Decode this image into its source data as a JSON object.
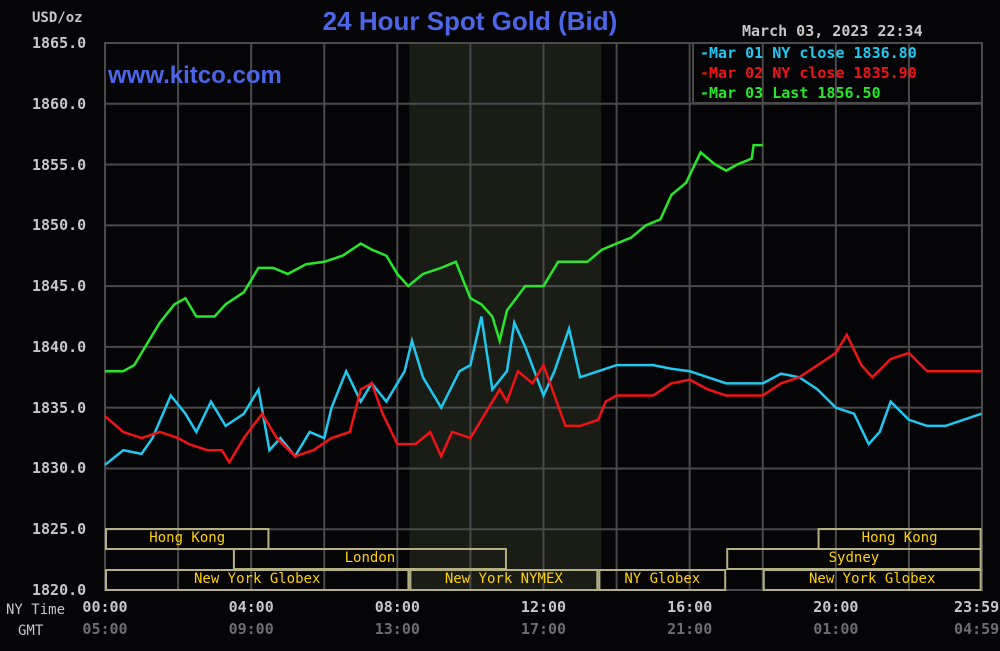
{
  "chart_data": {
    "type": "line",
    "title": "24 Hour Spot Gold (Bid)",
    "ylabel": "USD/oz",
    "watermark": "www.kitco.com",
    "timestamp": "March 03, 2023 22:34",
    "ylim": [
      1820,
      1865
    ],
    "y_ticks": [
      "1865.0",
      "1860.0",
      "1855.0",
      "1850.0",
      "1845.0",
      "1840.0",
      "1835.0",
      "1830.0",
      "1825.0",
      "1820.0"
    ],
    "x_row_labels": [
      "NY Time",
      "GMT"
    ],
    "x_ticks_ny": [
      "00:00",
      "04:00",
      "08:00",
      "12:00",
      "16:00",
      "20:00",
      "23:59"
    ],
    "x_ticks_gmt": [
      "05:00",
      "09:00",
      "13:00",
      "17:00",
      "21:00",
      "01:00",
      "04:59"
    ],
    "grid": true,
    "legend_placement": "top-right",
    "shaded_region_hours": [
      8.33,
      13.58
    ],
    "series": [
      {
        "name": "Mar 01 NY close 1836.80",
        "color": "#1ec8f0",
        "points": [
          [
            0,
            1830.3
          ],
          [
            0.5,
            1831.5
          ],
          [
            1,
            1831.2
          ],
          [
            1.3,
            1832.5
          ],
          [
            1.8,
            1836
          ],
          [
            2.2,
            1834.5
          ],
          [
            2.5,
            1833
          ],
          [
            2.9,
            1835.5
          ],
          [
            3.3,
            1833.5
          ],
          [
            3.8,
            1834.5
          ],
          [
            4.2,
            1836.5
          ],
          [
            4.5,
            1831.5
          ],
          [
            4.8,
            1832.5
          ],
          [
            5.2,
            1831
          ],
          [
            5.6,
            1833
          ],
          [
            6,
            1832.5
          ],
          [
            6.2,
            1835
          ],
          [
            6.6,
            1838
          ],
          [
            7,
            1835.5
          ],
          [
            7.3,
            1837
          ],
          [
            7.7,
            1835.5
          ],
          [
            8.2,
            1838
          ],
          [
            8.4,
            1840.5
          ],
          [
            8.7,
            1837.5
          ],
          [
            9.2,
            1835
          ],
          [
            9.7,
            1838
          ],
          [
            10,
            1838.5
          ],
          [
            10.3,
            1842.5
          ],
          [
            10.6,
            1836.5
          ],
          [
            11,
            1838
          ],
          [
            11.2,
            1842
          ],
          [
            11.5,
            1840
          ],
          [
            12,
            1836
          ],
          [
            12.3,
            1838
          ],
          [
            12.7,
            1841.5
          ],
          [
            13,
            1837.5
          ],
          [
            13.5,
            1838
          ],
          [
            14,
            1838.5
          ],
          [
            15,
            1838.5
          ],
          [
            15.5,
            1838.2
          ],
          [
            16,
            1838
          ],
          [
            16.5,
            1837.5
          ],
          [
            17,
            1837
          ],
          [
            18,
            1837
          ],
          [
            18.5,
            1837.8
          ],
          [
            19,
            1837.5
          ],
          [
            19.5,
            1836.5
          ],
          [
            20,
            1835
          ],
          [
            20.5,
            1834.5
          ],
          [
            20.9,
            1832
          ],
          [
            21.2,
            1833
          ],
          [
            21.5,
            1835.5
          ],
          [
            22,
            1834
          ],
          [
            22.5,
            1833.5
          ],
          [
            23,
            1833.5
          ],
          [
            23.99,
            1834.5
          ]
        ]
      },
      {
        "name": "Mar 02 NY close 1835.90",
        "color": "#f01414",
        "points": [
          [
            0,
            1834.3
          ],
          [
            0.5,
            1833
          ],
          [
            1,
            1832.5
          ],
          [
            1.5,
            1833
          ],
          [
            2,
            1832.5
          ],
          [
            2.3,
            1832
          ],
          [
            2.8,
            1831.5
          ],
          [
            3.2,
            1831.5
          ],
          [
            3.4,
            1830.5
          ],
          [
            3.8,
            1832.5
          ],
          [
            4.3,
            1834.5
          ],
          [
            4.7,
            1832.5
          ],
          [
            5.2,
            1831
          ],
          [
            5.7,
            1831.5
          ],
          [
            6.2,
            1832.5
          ],
          [
            6.7,
            1833
          ],
          [
            7,
            1836.5
          ],
          [
            7.3,
            1837
          ],
          [
            7.6,
            1834.5
          ],
          [
            8,
            1832
          ],
          [
            8.5,
            1832
          ],
          [
            8.9,
            1833
          ],
          [
            9.2,
            1831
          ],
          [
            9.5,
            1833
          ],
          [
            10,
            1832.5
          ],
          [
            10.4,
            1834.5
          ],
          [
            10.8,
            1836.5
          ],
          [
            11,
            1835.5
          ],
          [
            11.3,
            1838
          ],
          [
            11.7,
            1837
          ],
          [
            12,
            1838.5
          ],
          [
            12.3,
            1836
          ],
          [
            12.6,
            1833.5
          ],
          [
            13,
            1833.5
          ],
          [
            13.5,
            1834
          ],
          [
            13.7,
            1835.5
          ],
          [
            14,
            1836
          ],
          [
            15,
            1836
          ],
          [
            15.5,
            1837
          ],
          [
            16,
            1837.3
          ],
          [
            16.5,
            1836.5
          ],
          [
            17,
            1836
          ],
          [
            18,
            1836
          ],
          [
            18.5,
            1837
          ],
          [
            19,
            1837.5
          ],
          [
            19.5,
            1838.5
          ],
          [
            20,
            1839.5
          ],
          [
            20.3,
            1841
          ],
          [
            20.7,
            1838.5
          ],
          [
            21,
            1837.5
          ],
          [
            21.5,
            1839
          ],
          [
            22,
            1839.5
          ],
          [
            22.5,
            1838
          ],
          [
            23,
            1838
          ],
          [
            23.99,
            1838
          ]
        ]
      },
      {
        "name": "Mar 03 Last 1856.50",
        "color": "#28e628",
        "points": [
          [
            0,
            1838
          ],
          [
            0.5,
            1838
          ],
          [
            0.8,
            1838.5
          ],
          [
            1.2,
            1840.5
          ],
          [
            1.5,
            1842
          ],
          [
            1.9,
            1843.5
          ],
          [
            2.2,
            1844
          ],
          [
            2.5,
            1842.5
          ],
          [
            3,
            1842.5
          ],
          [
            3.3,
            1843.5
          ],
          [
            3.8,
            1844.5
          ],
          [
            4.2,
            1846.5
          ],
          [
            4.6,
            1846.5
          ],
          [
            5,
            1846
          ],
          [
            5.5,
            1846.8
          ],
          [
            6,
            1847
          ],
          [
            6.5,
            1847.5
          ],
          [
            7,
            1848.5
          ],
          [
            7.3,
            1848
          ],
          [
            7.7,
            1847.5
          ],
          [
            8,
            1846
          ],
          [
            8.3,
            1845
          ],
          [
            8.7,
            1846
          ],
          [
            9.2,
            1846.5
          ],
          [
            9.6,
            1847
          ],
          [
            10,
            1844
          ],
          [
            10.3,
            1843.5
          ],
          [
            10.6,
            1842.5
          ],
          [
            10.8,
            1840.5
          ],
          [
            11,
            1843
          ],
          [
            11.5,
            1845
          ],
          [
            12,
            1845
          ],
          [
            12.4,
            1847
          ],
          [
            12.8,
            1847
          ],
          [
            13.2,
            1847
          ],
          [
            13.6,
            1848
          ],
          [
            14,
            1848.5
          ],
          [
            14.4,
            1849
          ],
          [
            14.8,
            1850
          ],
          [
            15.2,
            1850.5
          ],
          [
            15.5,
            1852.5
          ],
          [
            15.9,
            1853.5
          ],
          [
            16.3,
            1856
          ],
          [
            16.7,
            1855
          ],
          [
            17,
            1854.5
          ],
          [
            17.3,
            1855
          ],
          [
            17.7,
            1855.5
          ],
          [
            17.75,
            1856.6
          ],
          [
            18.0,
            1856.6
          ]
        ]
      }
    ],
    "sessions": [
      {
        "label": "Hong Kong",
        "row": 0,
        "hours": [
          0,
          4.5
        ]
      },
      {
        "label": "London",
        "row": 1,
        "hours": [
          3.5,
          11
        ]
      },
      {
        "label": "New York Globex",
        "row": 2,
        "hours": [
          0,
          8.33
        ]
      },
      {
        "label": "New York NYMEX",
        "row": 2,
        "hours": [
          8.33,
          13.5
        ]
      },
      {
        "label": "NY Globex",
        "row": 2,
        "hours": [
          13.5,
          17
        ]
      },
      {
        "label": "Hong Kong",
        "row": 0,
        "hours": [
          19.5,
          23.99
        ]
      },
      {
        "label": "Sydney",
        "row": 1,
        "hours": [
          17,
          23.99
        ]
      },
      {
        "label": "New York Globex",
        "row": 2,
        "hours": [
          18,
          23.99
        ]
      }
    ]
  }
}
